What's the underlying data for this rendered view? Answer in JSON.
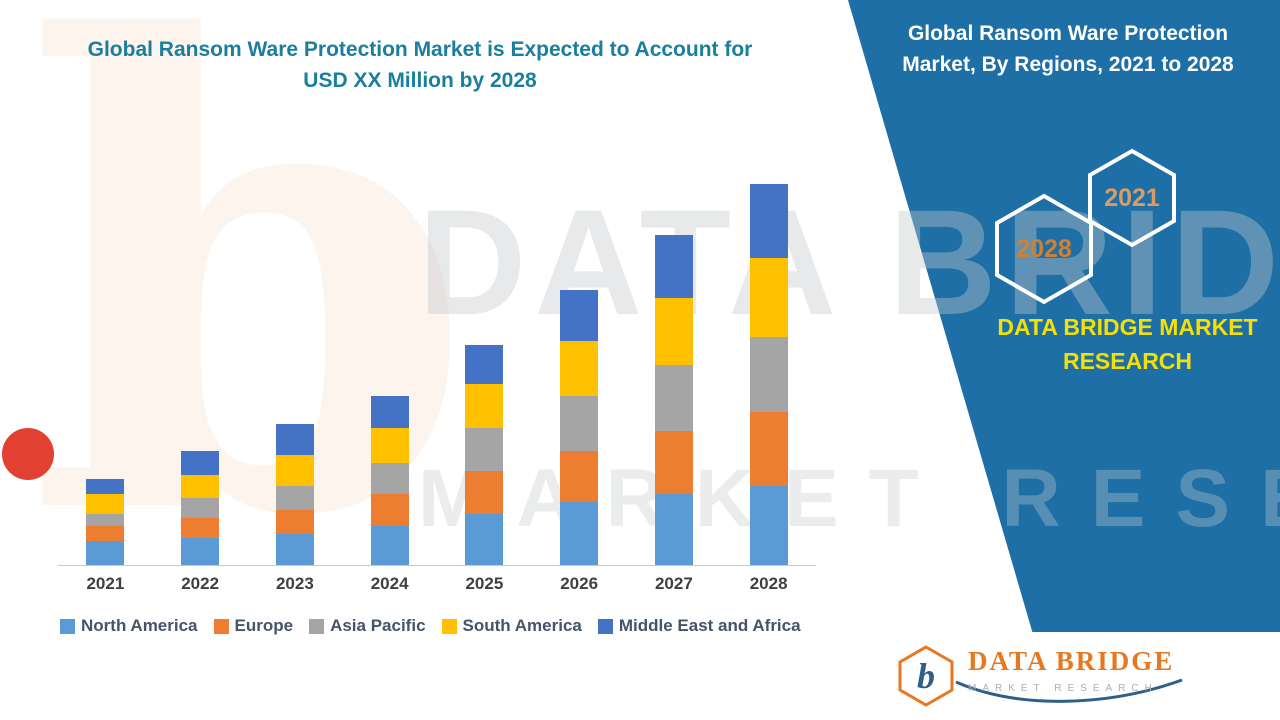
{
  "colors": {
    "panel_blue": "#1E6FA5",
    "title_teal": "#1A7F9C",
    "brand_yellow": "#F5E003",
    "hex_label_orange": "#D0802F",
    "axis_label": "#404040",
    "legend_text": "#44546A",
    "logo_orange": "#E87722",
    "logo_blue": "#2C5F8A"
  },
  "left_title": {
    "line1": "Global Ransom Ware Protection Market is Expected to Account for",
    "line2": "USD XX Million by 2028"
  },
  "right_panel": {
    "title_line1": "Global Ransom Ware Protection",
    "title_line2": "Market, By Regions, 2021 to 2028",
    "hex_back_label": "2028",
    "hex_front_label": "2021",
    "brand_line1": "DATA BRIDGE MARKET",
    "brand_line2": "RESEARCH"
  },
  "watermark": {
    "corner_letter": "b",
    "line1": "DATA BRIDGE",
    "line2": "MARKET RESEARCH"
  },
  "chart_data": {
    "type": "bar",
    "stacked": true,
    "title": "Global Ransom Ware Protection Market is Expected to Account for USD XX Million by 2028",
    "xlabel": "",
    "ylabel": "",
    "ylim": [
      0,
      100
    ],
    "grid": false,
    "legend_position": "bottom",
    "categories": [
      "2021",
      "2022",
      "2023",
      "2024",
      "2025",
      "2026",
      "2027",
      "2028"
    ],
    "series": [
      {
        "name": "North America",
        "color": "#5B9BD5",
        "values": [
          6,
          7,
          8,
          10,
          13,
          16,
          18,
          20
        ]
      },
      {
        "name": "Europe",
        "color": "#ED7D31",
        "values": [
          4,
          5,
          6,
          8,
          11,
          13,
          16,
          19
        ]
      },
      {
        "name": "Asia Pacific",
        "color": "#A5A5A5",
        "values": [
          3,
          5,
          6,
          8,
          11,
          14,
          17,
          19
        ]
      },
      {
        "name": "South America",
        "color": "#FFC000",
        "values": [
          5,
          6,
          8,
          9,
          11,
          14,
          17,
          20
        ]
      },
      {
        "name": "Middle East and Africa",
        "color": "#4472C4",
        "values": [
          4,
          6,
          8,
          8,
          10,
          13,
          16,
          19
        ]
      }
    ]
  },
  "logo": {
    "letter": "b",
    "name": "DATA BRIDGE",
    "subtitle": "MARKET RESEARCH"
  }
}
